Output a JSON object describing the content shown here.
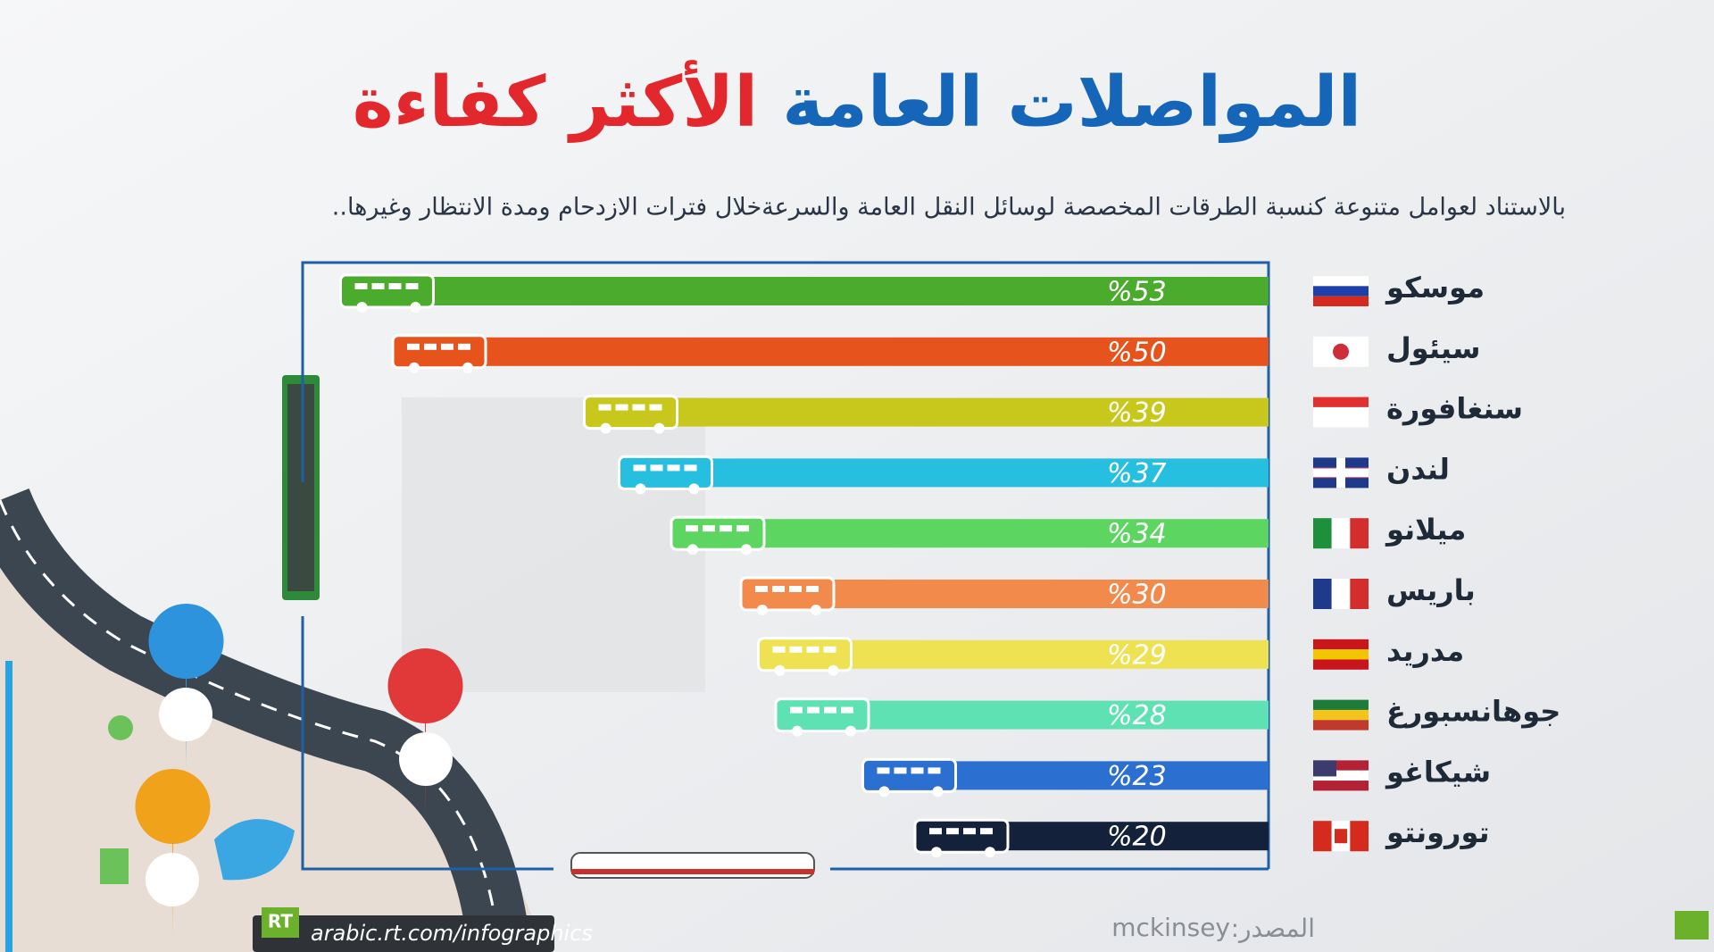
{
  "chart_data": {
    "type": "bar",
    "title_parts": [
      {
        "text": "المواصلات العامة",
        "color": "#1565b8"
      },
      {
        "text": "الأكثر كفاءة",
        "color": "#e3282d"
      }
    ],
    "subtitle": "بالاستناد لعوامل متنوعة كنسبة الطرقات المخصصة لوسائل النقل العامة والسرعةخلال فترات الازدحام ومدة الانتظار وغيرها..",
    "orientation": "horizontal",
    "categories": [
      "موسكو",
      "سيئول",
      "سنغافورة",
      "لندن",
      "ميلانو",
      "باريس",
      "مدريد",
      "جوهانسبورغ",
      "شيكاغو",
      "تورونتو"
    ],
    "values": [
      53,
      50,
      39,
      37,
      34,
      30,
      29,
      28,
      23,
      20
    ],
    "value_labels": [
      "%53",
      "%50",
      "%39",
      "%37",
      "%34",
      "%30",
      "%29",
      "%28",
      "%23",
      "%20"
    ],
    "colors": [
      "#4aab2c",
      "#e6531c",
      "#c8c81c",
      "#27bfe0",
      "#5dd561",
      "#f28a4c",
      "#eee253",
      "#5fe2b3",
      "#2b6fd0",
      "#13223a"
    ],
    "source_label": "المصدر:",
    "source": "mckinsey",
    "footer_logo": "RT",
    "footer_url": "arabic.rt.com/infographics"
  }
}
